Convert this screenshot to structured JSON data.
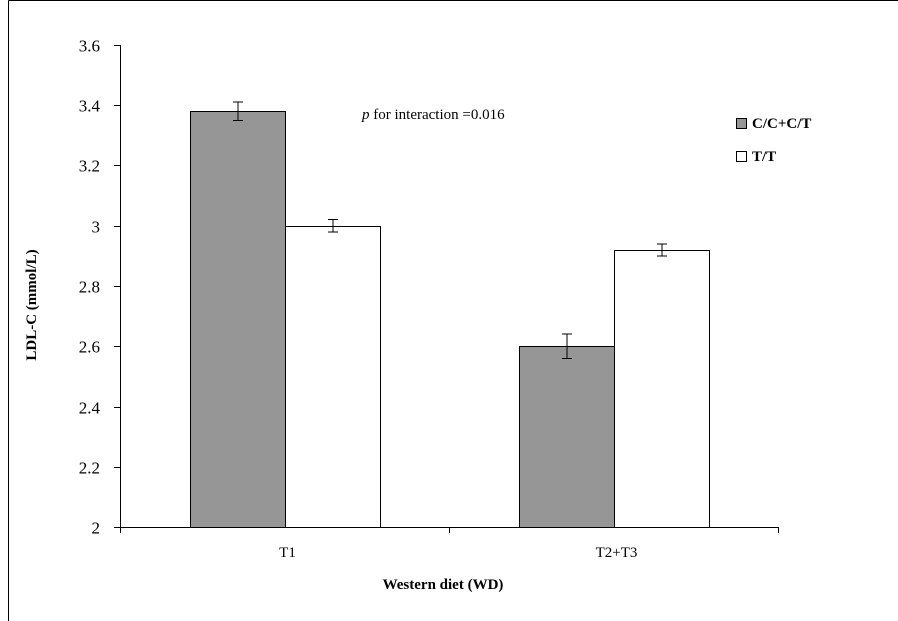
{
  "chart_data": {
    "type": "bar",
    "categories": [
      "T1",
      "T2+T3"
    ],
    "series": [
      {
        "name": "C/C+C/T",
        "values": [
          3.38,
          2.6
        ],
        "errors": [
          0.03,
          0.04
        ],
        "color": "#969696"
      },
      {
        "name": "T/T",
        "values": [
          3.0,
          2.92
        ],
        "errors": [
          0.02,
          0.02
        ],
        "color": "#ffffff"
      }
    ],
    "xlabel": "Western diet (WD)",
    "ylabel": "LDL-C (mmol/L)",
    "ylim": [
      2,
      3.6
    ],
    "yticks": [
      "2",
      "2.2",
      "2.4",
      "2.6",
      "2.8",
      "3",
      "3.2",
      "3.4",
      "3.6"
    ],
    "annotation": {
      "p": "p",
      "rest": " for interaction =0.016"
    },
    "grid": false,
    "legend_position": "top-right"
  }
}
